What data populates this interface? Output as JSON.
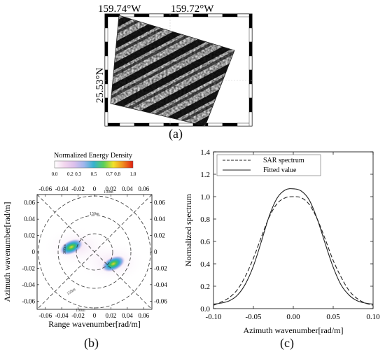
{
  "panel_a": {
    "lon_labels": [
      "159.74°W",
      "159.72°W"
    ],
    "lat_label": "25.53°N",
    "caption": "(a)"
  },
  "panel_b": {
    "colorbar_title": "Normalized Energy Density",
    "colorbar_ticks": [
      "0.0",
      "0.2",
      "0.3",
      "0.5",
      "0.7",
      "0.8",
      "1.0"
    ],
    "colorbar_colors": [
      "#ffffff",
      "#f3d6ee",
      "#dcc0ec",
      "#9fb6ec",
      "#37b2ce",
      "#5bcf5a",
      "#f2e22a",
      "#f08a1e",
      "#e01f12"
    ],
    "xlabel": "Range wavenumber[rad/m]",
    "ylabel": "Azimuth wavenumber[rad/m]",
    "ticks": [
      "-0.06",
      "-0.04",
      "-0.02",
      "0",
      "0.02",
      "0.04",
      "0.06"
    ],
    "ring_labels": [
      "100m",
      "150m",
      "300m",
      "150m",
      "100m"
    ],
    "caption": "(b)"
  },
  "chart_data": {
    "type": "line",
    "title": "",
    "xlabel": "Azimuth wavenumber[rad/m]",
    "ylabel": "Normalized spectrum",
    "xlim": [
      -0.1,
      0.1
    ],
    "ylim": [
      0,
      1.4
    ],
    "xticks": [
      "-0.10",
      "-0.05",
      "0.00",
      "0.05",
      "0.10"
    ],
    "yticks": [
      "0.0",
      "0.2",
      "0.4",
      "0.6",
      "0.8",
      "1.0",
      "1.2",
      "1.4"
    ],
    "legend_position": "top-right",
    "series": [
      {
        "name": "SAR spectrum",
        "style": "dashed",
        "x": [
          -0.1,
          -0.09,
          -0.08,
          -0.07,
          -0.06,
          -0.05,
          -0.04,
          -0.03,
          -0.02,
          -0.01,
          0.0,
          0.01,
          0.02,
          0.03,
          0.04,
          0.05,
          0.06,
          0.07,
          0.08,
          0.09,
          0.1
        ],
        "y": [
          0.03,
          0.06,
          0.1,
          0.17,
          0.29,
          0.45,
          0.64,
          0.82,
          0.94,
          0.99,
          1.0,
          0.99,
          0.93,
          0.8,
          0.62,
          0.43,
          0.28,
          0.16,
          0.09,
          0.05,
          0.03
        ]
      },
      {
        "name": "Fitted value",
        "style": "solid",
        "x": [
          -0.1,
          -0.09,
          -0.08,
          -0.07,
          -0.06,
          -0.05,
          -0.04,
          -0.03,
          -0.02,
          -0.01,
          0.0,
          0.01,
          0.02,
          0.03,
          0.04,
          0.05,
          0.06,
          0.07,
          0.08,
          0.09,
          0.1
        ],
        "y": [
          0.04,
          0.05,
          0.07,
          0.12,
          0.22,
          0.38,
          0.6,
          0.83,
          0.99,
          1.06,
          1.07,
          1.05,
          0.97,
          0.8,
          0.58,
          0.37,
          0.21,
          0.12,
          0.07,
          0.05,
          0.04
        ]
      }
    ],
    "caption": "(c)"
  }
}
